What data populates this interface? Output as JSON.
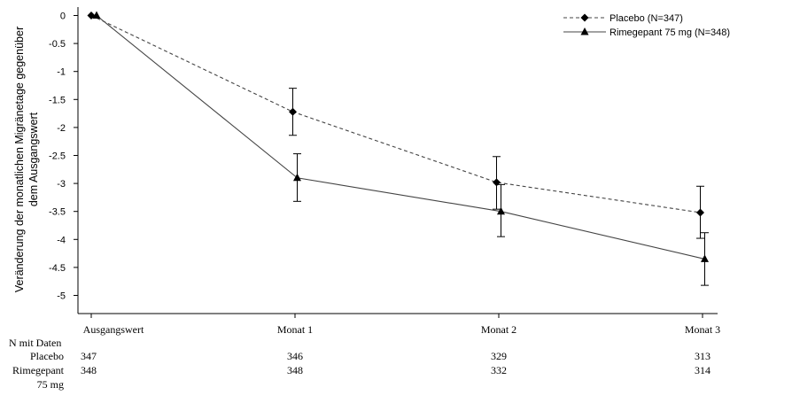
{
  "chart_data": {
    "type": "line",
    "categories": [
      "Ausgangswert",
      "Monat 1",
      "Monat 2",
      "Monat 3"
    ],
    "ylabel_lines": [
      "Veränderung der monatlichen Migränetage gegenüber",
      "dem Ausgangswert"
    ],
    "ylim": [
      -5.2,
      0.1
    ],
    "yticks": [
      0,
      -0.5,
      -1,
      -1.5,
      -2,
      -2.5,
      -3,
      -3.5,
      -4,
      -4.5,
      -5
    ],
    "legend_position": "top-right",
    "series": [
      {
        "name": "Placebo (N=347)",
        "style": "dashed",
        "marker": "diamond",
        "values": [
          0,
          -1.72,
          -2.98,
          -3.52
        ],
        "error_low": [
          0,
          -2.14,
          -3.46,
          -3.98
        ],
        "error_high": [
          0,
          -1.3,
          -2.52,
          -3.05
        ]
      },
      {
        "name": "Rimegepant 75 mg (N=348)",
        "style": "solid",
        "marker": "triangle",
        "values": [
          0,
          -2.9,
          -3.5,
          -4.35
        ],
        "error_low": [
          0,
          -3.32,
          -3.95,
          -4.82
        ],
        "error_high": [
          0,
          -2.47,
          -3.02,
          -3.88
        ]
      }
    ]
  },
  "n_table": {
    "header": "N mit Daten",
    "rows": [
      {
        "label_lines": [
          "Placebo"
        ],
        "values": [
          "347",
          "346",
          "329",
          "313"
        ]
      },
      {
        "label_lines": [
          "Rimegepant",
          "75 mg"
        ],
        "values": [
          "348",
          "348",
          "332",
          "314"
        ]
      }
    ]
  }
}
